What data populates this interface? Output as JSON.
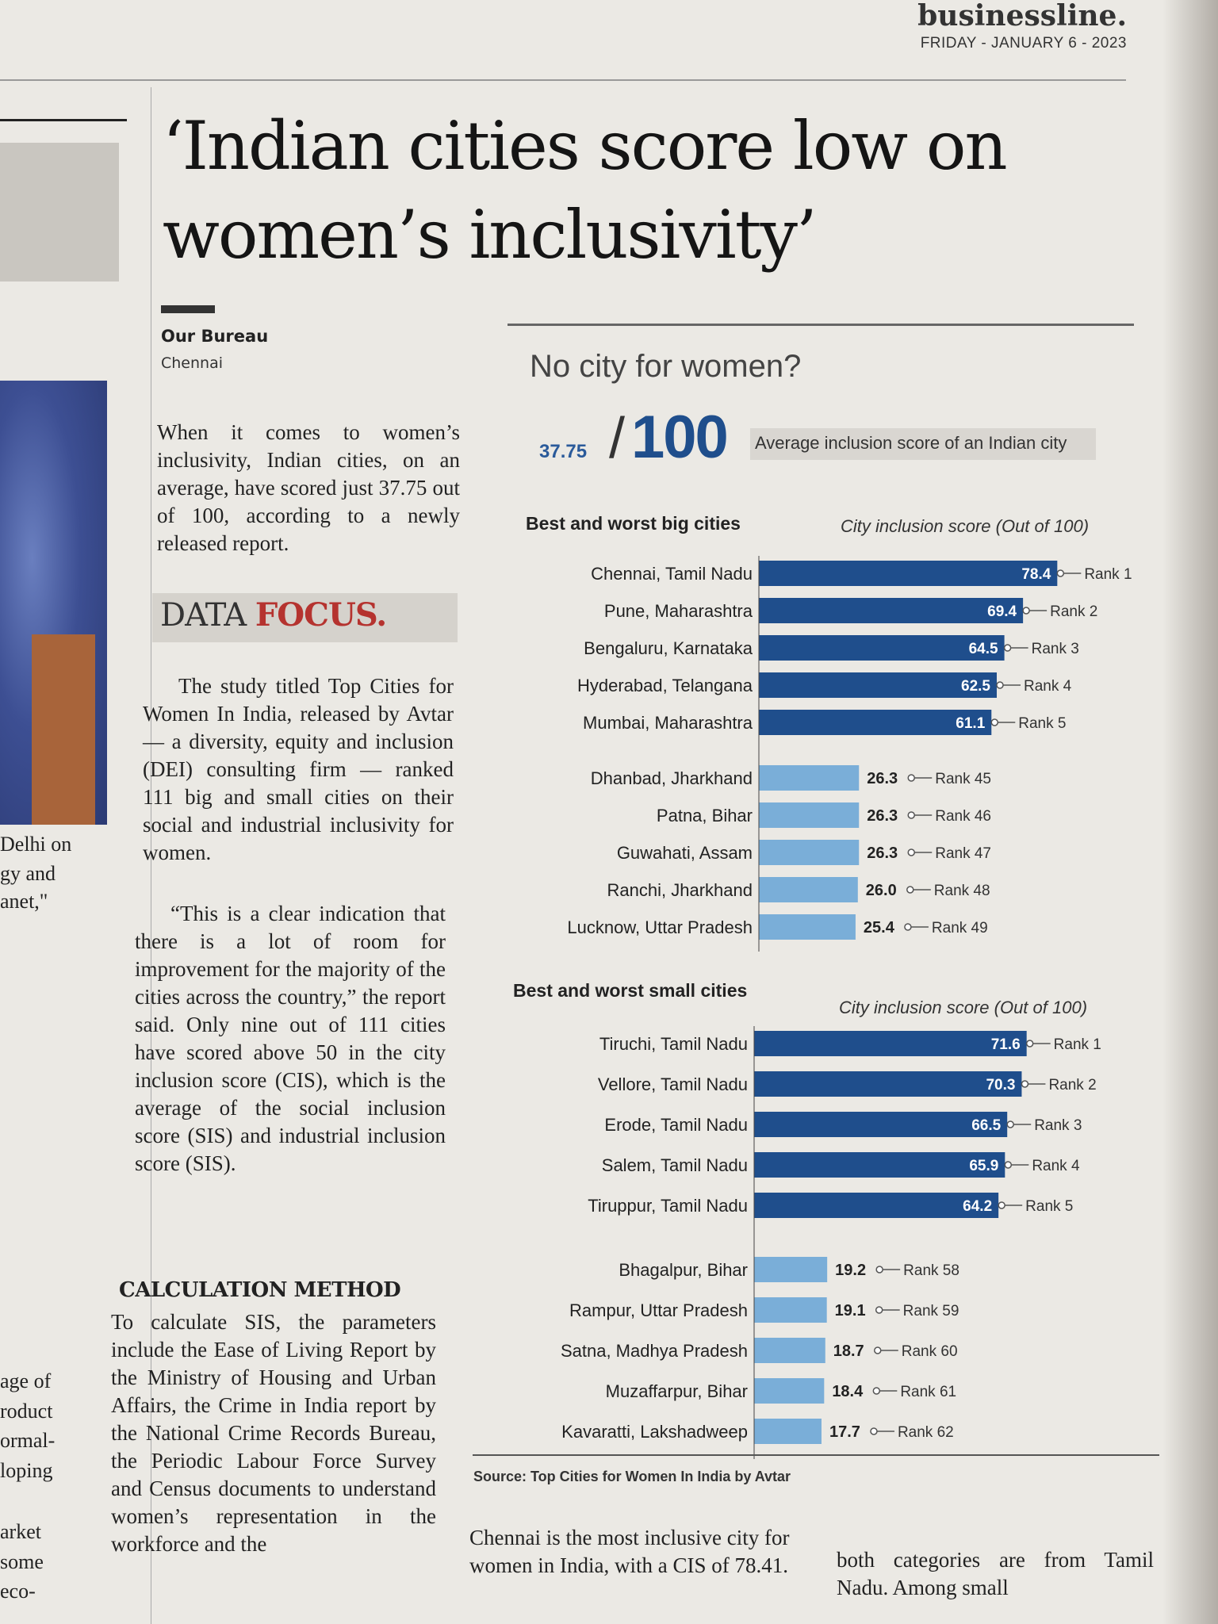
{
  "masthead": {
    "brand": "businessline.",
    "date": "FRIDAY - JANUARY 6 - 2023"
  },
  "left_fragments": [
    "Delhi on",
    "gy and",
    "anet,\"",
    "age of",
    "roduct",
    "ormal-",
    "loping",
    "arket",
    "some",
    "eco-"
  ],
  "headline": "‘Indian cities score low on women’s inclusivity’",
  "byline": {
    "name": "Our Bureau",
    "place": "Chennai"
  },
  "intro": "When it comes to women’s inclusivity, Indian cities, on an average, have scored just 37.75 out of 100, according to a newly released report.",
  "data_focus": {
    "word1": "DATA ",
    "word2": "FOCUS."
  },
  "study_paragraph": "The study titled Top Cities for Women In India, released by Avtar — a diversity, equity and inclusion (DEI) consulting firm — ranked 111 big and small cities on their social and industrial inclusivity for women.",
  "quote_paragraph": "“This is a clear indication that there is a lot of room for improvement for the majority of the cities across the country,” the report said. Only nine out of 111 cities have scored above 50 in the city inclusion score (CIS), which is the average of the social inclusion score (SIS) and industrial inclusion score (SIS).",
  "calc_heading": "CALCULATION METHOD",
  "calc_paragraph": "To calculate SIS, the parameters include the Ease of Living Report by the Ministry of Housing and Urban Affairs, the Crime in India report by the National Crime Records Bureau, the Periodic Labour Force Survey and Census documents to understand women’s representation in the workforce and the",
  "bottom_left_text": "Chennai is the most inclusive city for women in India, with a CIS of 78.41.",
  "bottom_right_text": "both categories are from Tamil Nadu. Among small",
  "chart_data": {
    "type": "bar",
    "title": "No city for women?",
    "average": {
      "score": "37.75",
      "total": "100",
      "label": "Average inclusion score of an Indian city"
    },
    "source": "Source: Top Cities for Women In India by Avtar",
    "colors": {
      "best": "#1f4e8c",
      "worst": "#7aaed8"
    },
    "xlim": [
      0,
      100
    ],
    "sections": [
      {
        "title": "Best and worst big cities",
        "axis_title": "City inclusion score (Out of 100)",
        "best": [
          {
            "city": "Chennai, Tamil Nadu",
            "value": 78.4,
            "rank": "Rank 1"
          },
          {
            "city": "Pune, Maharashtra",
            "value": 69.4,
            "rank": "Rank 2"
          },
          {
            "city": "Bengaluru, Karnataka",
            "value": 64.5,
            "rank": "Rank 3"
          },
          {
            "city": "Hyderabad, Telangana",
            "value": 62.5,
            "rank": "Rank 4"
          },
          {
            "city": "Mumbai, Maharashtra",
            "value": 61.1,
            "rank": "Rank 5"
          }
        ],
        "worst": [
          {
            "city": "Dhanbad, Jharkhand",
            "value": 26.3,
            "rank": "Rank 45"
          },
          {
            "city": "Patna, Bihar",
            "value": 26.3,
            "rank": "Rank 46"
          },
          {
            "city": "Guwahati, Assam",
            "value": 26.3,
            "rank": "Rank 47"
          },
          {
            "city": "Ranchi, Jharkhand",
            "value": 26.0,
            "rank": "Rank 48"
          },
          {
            "city": "Lucknow, Uttar Pradesh",
            "value": 25.4,
            "rank": "Rank 49"
          }
        ]
      },
      {
        "title": "Best and worst small cities",
        "axis_title": "City inclusion score (Out of 100)",
        "best": [
          {
            "city": "Tiruchi, Tamil Nadu",
            "value": 71.6,
            "rank": "Rank 1"
          },
          {
            "city": "Vellore, Tamil Nadu",
            "value": 70.3,
            "rank": "Rank 2"
          },
          {
            "city": "Erode, Tamil Nadu",
            "value": 66.5,
            "rank": "Rank 3"
          },
          {
            "city": "Salem, Tamil Nadu",
            "value": 65.9,
            "rank": "Rank 4"
          },
          {
            "city": "Tiruppur, Tamil Nadu",
            "value": 64.2,
            "rank": "Rank 5"
          }
        ],
        "worst": [
          {
            "city": "Bhagalpur, Bihar",
            "value": 19.2,
            "rank": "Rank 58"
          },
          {
            "city": "Rampur, Uttar Pradesh",
            "value": 19.1,
            "rank": "Rank 59"
          },
          {
            "city": "Satna, Madhya Pradesh",
            "value": 18.7,
            "rank": "Rank 60"
          },
          {
            "city": "Muzaffarpur, Bihar",
            "value": 18.4,
            "rank": "Rank 61"
          },
          {
            "city": "Kavaratti, Lakshadweep",
            "value": 17.7,
            "rank": "Rank 62"
          }
        ]
      }
    ]
  }
}
